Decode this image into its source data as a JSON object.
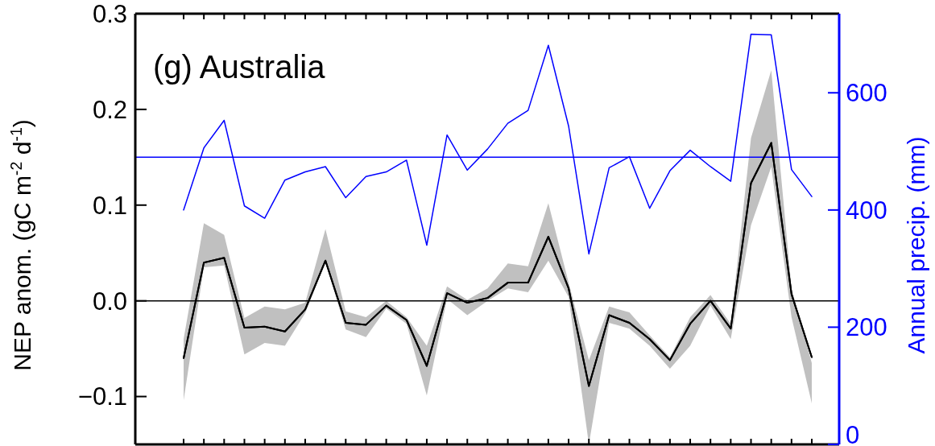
{
  "chart_data": {
    "type": "line",
    "title": "(g) Australia",
    "ylabel": "NEP anom. (gC m$^{-2}$ d$^{-1}$)",
    "y2label": "Annual precip. (mm)",
    "categories": [
      null,
      null,
      null,
      null,
      null,
      null,
      null,
      null,
      null,
      null,
      null,
      null,
      null,
      null,
      null,
      null,
      null,
      null,
      null,
      null,
      null,
      null,
      null,
      null,
      null,
      null,
      null,
      null,
      null,
      null,
      null,
      null
    ],
    "series": [
      {
        "color": "#000000",
        "values": [
          -0.06,
          0.04,
          0.045,
          -0.028,
          -0.027,
          -0.032,
          -0.009,
          0.042,
          -0.023,
          -0.025,
          -0.005,
          -0.02,
          -0.068,
          0.008,
          -0.002,
          0.003,
          0.019,
          0.019,
          0.067,
          0.013,
          -0.089,
          -0.015,
          -0.023,
          -0.04,
          -0.062,
          -0.024,
          0.0,
          -0.029,
          0.123,
          0.165,
          0.007,
          -0.059
        ],
        "lower": [
          -0.104,
          0.035,
          0.037,
          -0.056,
          -0.044,
          -0.047,
          -0.013,
          0.04,
          -0.03,
          -0.038,
          -0.008,
          -0.024,
          -0.099,
          0.002,
          -0.015,
          0.0,
          0.013,
          0.009,
          0.042,
          0.004,
          -0.15,
          -0.023,
          -0.029,
          -0.047,
          -0.071,
          -0.047,
          -0.005,
          -0.04,
          0.079,
          0.14,
          -0.017,
          -0.107
        ],
        "upper": [
          -0.04,
          0.081,
          0.069,
          -0.018,
          -0.006,
          -0.009,
          -0.002,
          0.075,
          -0.011,
          -0.017,
          0.0,
          -0.017,
          -0.047,
          0.015,
          0.001,
          0.013,
          0.039,
          0.036,
          0.102,
          0.019,
          -0.062,
          -0.006,
          -0.012,
          -0.036,
          -0.059,
          -0.017,
          0.006,
          -0.024,
          0.17,
          0.241,
          0.013,
          -0.065
        ]
      },
      {
        "color": "#0000ff",
        "axis": "y2",
        "values": [
          400,
          506,
          553,
          407,
          386,
          451,
          465,
          474,
          421,
          457,
          465,
          485,
          340,
          528,
          468,
          504,
          548,
          570,
          681,
          543,
          325,
          472,
          491,
          403,
          467,
          502,
          474,
          449,
          700,
          699,
          469,
          423
        ]
      }
    ],
    "ylim": [
      -0.15,
      0.3
    ],
    "yticks": [
      {
        "value": -0.1,
        "label": "−0.1"
      },
      {
        "value": 0,
        "label": "0.0"
      },
      {
        "value": 0.1,
        "label": "0.1"
      },
      {
        "value": 0.2,
        "label": "0.2"
      },
      {
        "value": 0.3,
        "label": "0.3"
      }
    ],
    "y2lim": [
      0,
      735
    ],
    "y2ticks": [
      0,
      200,
      400,
      600
    ],
    "ref_lines": [
      {
        "axis": "y",
        "value": 0,
        "color": "#000000"
      },
      {
        "axis": "y2",
        "value": 490,
        "color": "#0000ff"
      }
    ]
  }
}
